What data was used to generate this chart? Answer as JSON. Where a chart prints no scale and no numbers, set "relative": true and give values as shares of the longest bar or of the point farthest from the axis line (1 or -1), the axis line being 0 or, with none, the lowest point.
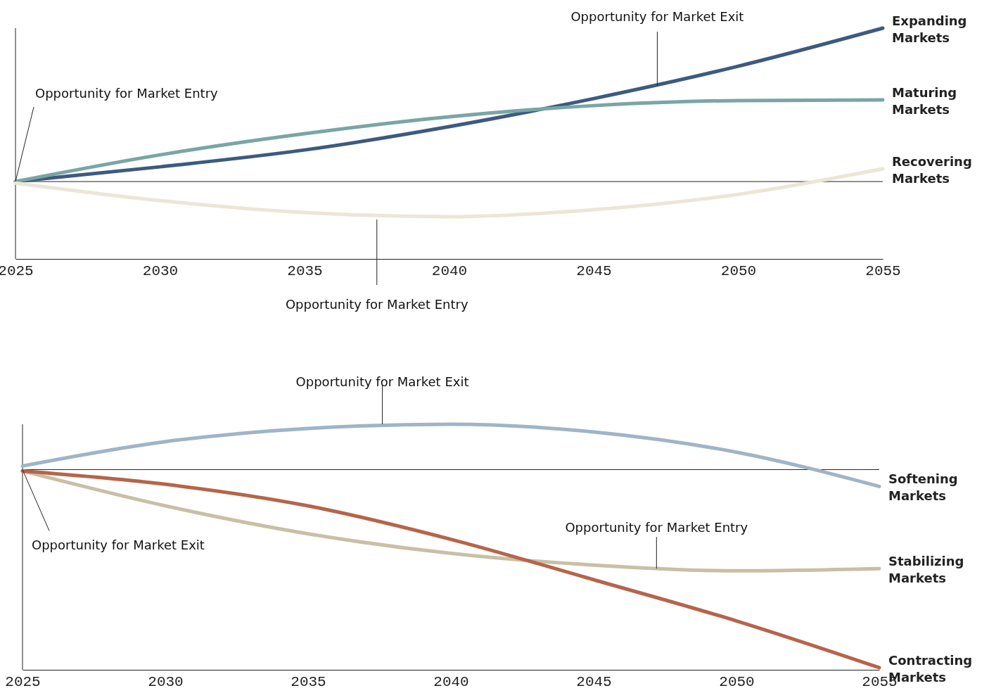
{
  "chart_data": [
    {
      "type": "line",
      "relative": true,
      "x": [
        2025,
        2030,
        2035,
        2040,
        2045,
        2050,
        2055
      ],
      "xlim": [
        2025,
        2055
      ],
      "xticks": [
        2025,
        2030,
        2035,
        2040,
        2045,
        2050,
        2055
      ],
      "grid": false,
      "legend": false,
      "series": [
        {
          "name": "Expanding Markets",
          "color": "#3d5a80",
          "values": [
            0,
            0.096,
            0.206,
            0.358,
            0.541,
            0.752,
            1
          ]
        },
        {
          "name": "Maturing Markets",
          "color": "#7aa5a5",
          "values": [
            0,
            0.174,
            0.312,
            0.422,
            0.495,
            0.528,
            0.532
          ]
        },
        {
          "name": "Recovering Markets",
          "color": "#ebe6d6",
          "values": [
            -0.01,
            -0.124,
            -0.202,
            -0.229,
            -0.183,
            -0.083,
            0.083
          ]
        }
      ],
      "annotations": [
        {
          "text": "Opportunity for Market Entry",
          "x": 2025,
          "y": 0
        },
        {
          "text": "Opportunity for Market Exit",
          "x": 2047.2,
          "y": 0.624
        },
        {
          "text": "Opportunity for Market Entry",
          "x": 2037.5,
          "y": -0.229
        }
      ]
    },
    {
      "type": "line",
      "relative": true,
      "x": [
        2025,
        2030,
        2035,
        2040,
        2045,
        2050,
        2055
      ],
      "xlim": [
        2025,
        2055
      ],
      "xticks": [
        2025,
        2030,
        2035,
        2040,
        2045,
        2050,
        2055
      ],
      "grid": false,
      "legend": false,
      "series": [
        {
          "name": "Softening Markets",
          "color": "#9fb4c7",
          "values": [
            0.018,
            0.141,
            0.208,
            0.229,
            0.19,
            0.088,
            -0.085
          ]
        },
        {
          "name": "Stabilizing Markets",
          "color": "#c9bfa5",
          "values": [
            -0.007,
            -0.183,
            -0.324,
            -0.423,
            -0.482,
            -0.511,
            -0.5
          ]
        },
        {
          "name": "Contracting Markets",
          "color": "#b5654a",
          "values": [
            -0.007,
            -0.074,
            -0.183,
            -0.352,
            -0.556,
            -0.764,
            -1
          ]
        }
      ],
      "annotations": [
        {
          "text": "Opportunity for Market Exit",
          "x": 2037.6,
          "y": 0.229
        },
        {
          "text": "Opportunity for Market Exit",
          "x": 2025,
          "y": 0
        },
        {
          "text": "Opportunity for Market Entry",
          "x": 2047.2,
          "y": -0.5
        }
      ]
    }
  ]
}
